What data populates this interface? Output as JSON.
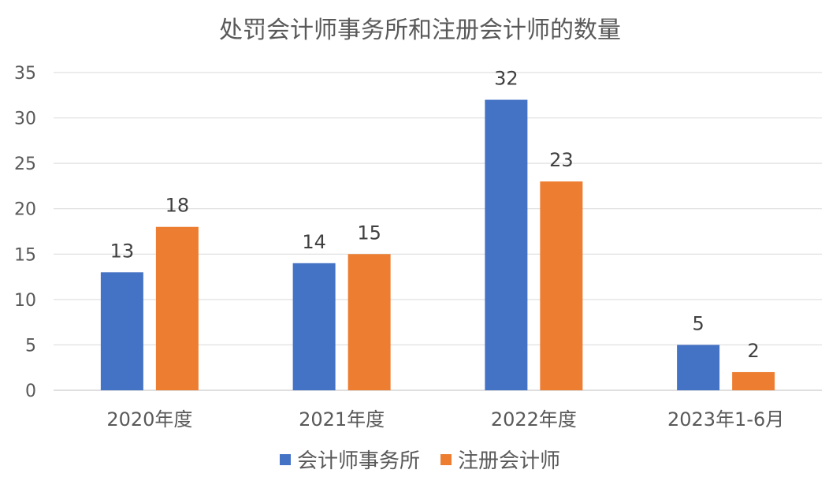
{
  "chart_data": {
    "type": "bar",
    "title": "处罚会计师事务所和注册会计师的数量",
    "xlabel": "",
    "ylabel": "",
    "categories": [
      "2020年度",
      "2021年度",
      "2022年度",
      "2023年1-6月"
    ],
    "series": [
      {
        "name": "会计师事务所",
        "color": "#4472C4",
        "values": [
          13,
          14,
          32,
          5
        ]
      },
      {
        "name": "注册会计师",
        "color": "#ED7D31",
        "values": [
          18,
          15,
          23,
          2
        ]
      }
    ],
    "ylim": [
      0,
      35
    ],
    "yticks": [
      0,
      5,
      10,
      15,
      20,
      25,
      30,
      35
    ],
    "grid": true,
    "legend_position": "bottom",
    "data_labels": true
  }
}
